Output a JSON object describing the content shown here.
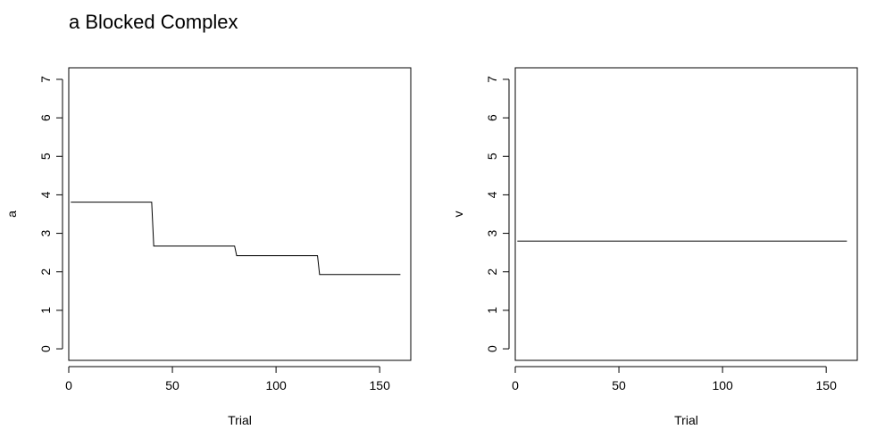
{
  "figure": {
    "title": "a Blocked Complex"
  },
  "chart_data": [
    {
      "type": "line",
      "xlabel": "Trial",
      "ylabel": "a",
      "xlim": [
        0,
        165
      ],
      "ylim": [
        -0.3,
        7.3
      ],
      "xticks": [
        0,
        50,
        100,
        150
      ],
      "yticks": [
        0,
        1,
        2,
        3,
        4,
        5,
        6,
        7
      ],
      "series": [
        {
          "x": [
            1,
            40,
            41,
            80,
            81,
            120,
            121,
            160
          ],
          "y": [
            3.81,
            3.81,
            2.67,
            2.67,
            2.42,
            2.42,
            1.93,
            1.93
          ]
        }
      ],
      "grid": false
    },
    {
      "type": "line",
      "xlabel": "Trial",
      "ylabel": "v",
      "xlim": [
        0,
        165
      ],
      "ylim": [
        -0.3,
        7.3
      ],
      "xticks": [
        0,
        50,
        100,
        150
      ],
      "yticks": [
        0,
        1,
        2,
        3,
        4,
        5,
        6,
        7
      ],
      "series": [
        {
          "x": [
            1,
            160
          ],
          "y": [
            2.8,
            2.8
          ]
        }
      ],
      "grid": false
    }
  ]
}
